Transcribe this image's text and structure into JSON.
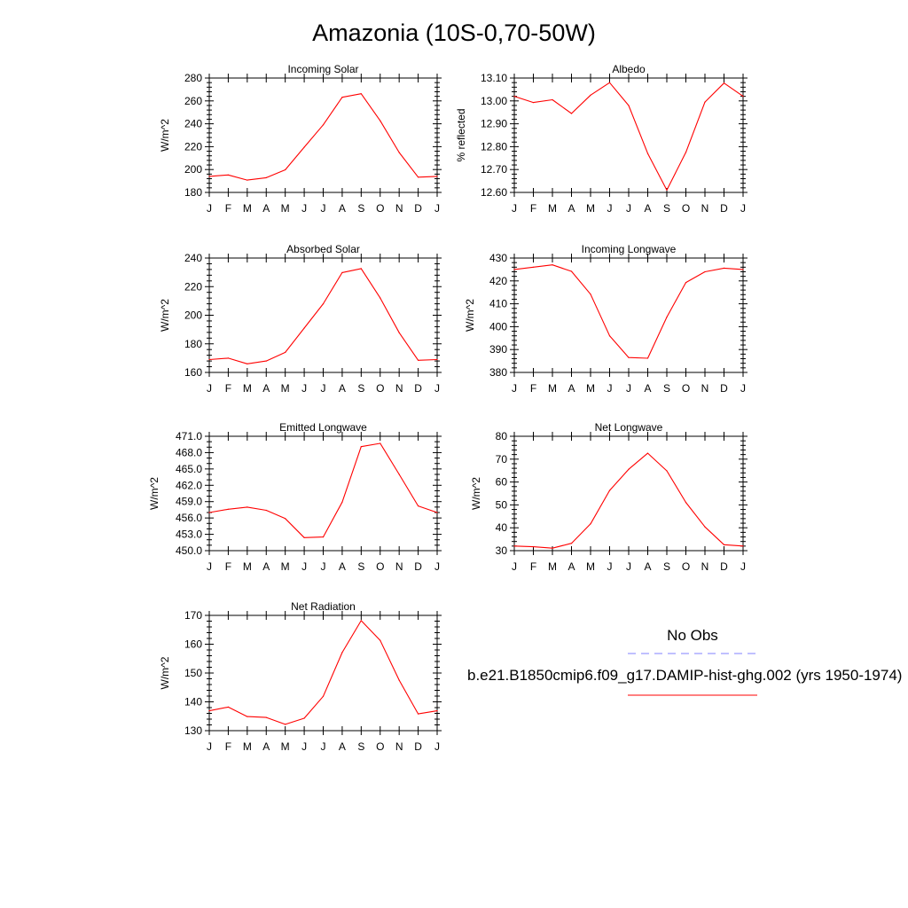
{
  "title": "Amazonia (10S-0,70-50W)",
  "months": [
    "J",
    "F",
    "M",
    "A",
    "M",
    "J",
    "J",
    "A",
    "S",
    "O",
    "N",
    "D",
    "J"
  ],
  "colors": {
    "series": "#ff0000",
    "obs": "#8080ff",
    "axis": "#000000"
  },
  "legend": {
    "obs_label": "No Obs",
    "series_label": "b.e21.B1850cmip6.f09_g17.DAMIP-hist-ghg.002 (yrs 1950-1974)"
  },
  "chart_data": [
    {
      "type": "line",
      "title": "Incoming Solar",
      "ylabel": "W/m^2",
      "ylim": [
        180,
        280
      ],
      "yticks": [
        "180",
        "200",
        "220",
        "240",
        "260",
        "280"
      ],
      "yminor": 4,
      "categories": [
        "J",
        "F",
        "M",
        "A",
        "M",
        "J",
        "J",
        "A",
        "S",
        "O",
        "N",
        "D",
        "J"
      ],
      "series": [
        {
          "values": [
            194,
            195.3,
            190.8,
            192.9,
            199.8,
            219.5,
            239.1,
            263.2,
            266.3,
            242.6,
            214.9,
            193.3,
            194
          ]
        }
      ]
    },
    {
      "type": "line",
      "title": "Albedo",
      "ylabel": "% reflected",
      "ylim": [
        12.6,
        13.1
      ],
      "yticks": [
        "12.60",
        "12.70",
        "12.80",
        "12.90",
        "13.00",
        "13.10"
      ],
      "yminor": 4,
      "categories": [
        "J",
        "F",
        "M",
        "A",
        "M",
        "J",
        "J",
        "A",
        "S",
        "O",
        "N",
        "D",
        "J"
      ],
      "series": [
        {
          "values": [
            13.02,
            12.993,
            13.005,
            12.945,
            13.025,
            13.08,
            12.98,
            12.77,
            12.61,
            12.775,
            12.995,
            13.078,
            13.02
          ]
        }
      ]
    },
    {
      "type": "line",
      "title": "Absorbed Solar",
      "ylabel": "W/m^2",
      "ylim": [
        160,
        240
      ],
      "yticks": [
        "160",
        "180",
        "200",
        "220",
        "240"
      ],
      "yminor": 4,
      "categories": [
        "J",
        "F",
        "M",
        "A",
        "M",
        "J",
        "J",
        "A",
        "S",
        "O",
        "N",
        "D",
        "J"
      ],
      "series": [
        {
          "values": [
            169,
            170,
            166,
            168,
            174,
            191,
            208,
            229.8,
            232.6,
            212,
            187.8,
            168.5,
            169
          ]
        }
      ]
    },
    {
      "type": "line",
      "title": "Incoming Longwave",
      "ylabel": "W/m^2",
      "ylim": [
        380,
        430
      ],
      "yticks": [
        "380",
        "390",
        "400",
        "410",
        "420",
        "430"
      ],
      "yminor": 4,
      "categories": [
        "J",
        "F",
        "M",
        "A",
        "M",
        "J",
        "J",
        "A",
        "S",
        "O",
        "N",
        "D",
        "J"
      ],
      "series": [
        {
          "values": [
            425,
            426,
            427,
            424.2,
            414.2,
            396,
            386.5,
            386.2,
            404.2,
            419.3,
            424,
            425.6,
            425
          ]
        }
      ]
    },
    {
      "type": "line",
      "title": "Emitted Longwave",
      "ylabel": "W/m^2",
      "ylim": [
        450,
        471
      ],
      "yticks": [
        "450.0",
        "453.0",
        "456.0",
        "459.0",
        "462.0",
        "465.0",
        "468.0",
        "471.0"
      ],
      "yminor": 2,
      "categories": [
        "J",
        "F",
        "M",
        "A",
        "M",
        "J",
        "J",
        "A",
        "S",
        "O",
        "N",
        "D",
        "J"
      ],
      "series": [
        {
          "values": [
            457,
            457.6,
            458,
            457.4,
            455.9,
            452.4,
            452.5,
            458.9,
            469.1,
            469.7,
            464,
            458.2,
            457
          ]
        }
      ]
    },
    {
      "type": "line",
      "title": "Net Longwave",
      "ylabel": "W/m^2",
      "ylim": [
        30,
        80
      ],
      "yticks": [
        "30",
        "40",
        "50",
        "60",
        "70",
        "80"
      ],
      "yminor": 4,
      "categories": [
        "J",
        "F",
        "M",
        "A",
        "M",
        "J",
        "J",
        "A",
        "S",
        "O",
        "N",
        "D",
        "J"
      ],
      "series": [
        {
          "values": [
            32,
            31.7,
            31.1,
            33.2,
            41.7,
            56.3,
            65.6,
            72.6,
            64.9,
            51.1,
            40.4,
            32.6,
            32
          ]
        }
      ]
    },
    {
      "type": "line",
      "title": "Net Radiation",
      "ylabel": "W/m^2",
      "ylim": [
        130,
        170
      ],
      "yticks": [
        "130",
        "140",
        "150",
        "160",
        "170"
      ],
      "yminor": 4,
      "categories": [
        "J",
        "F",
        "M",
        "A",
        "M",
        "J",
        "J",
        "A",
        "S",
        "O",
        "N",
        "D",
        "J"
      ],
      "series": [
        {
          "values": [
            136.9,
            138.2,
            134.9,
            134.6,
            132.2,
            134.3,
            141.9,
            157.1,
            168.2,
            161.3,
            147.5,
            135.8,
            136.9
          ]
        }
      ]
    }
  ]
}
